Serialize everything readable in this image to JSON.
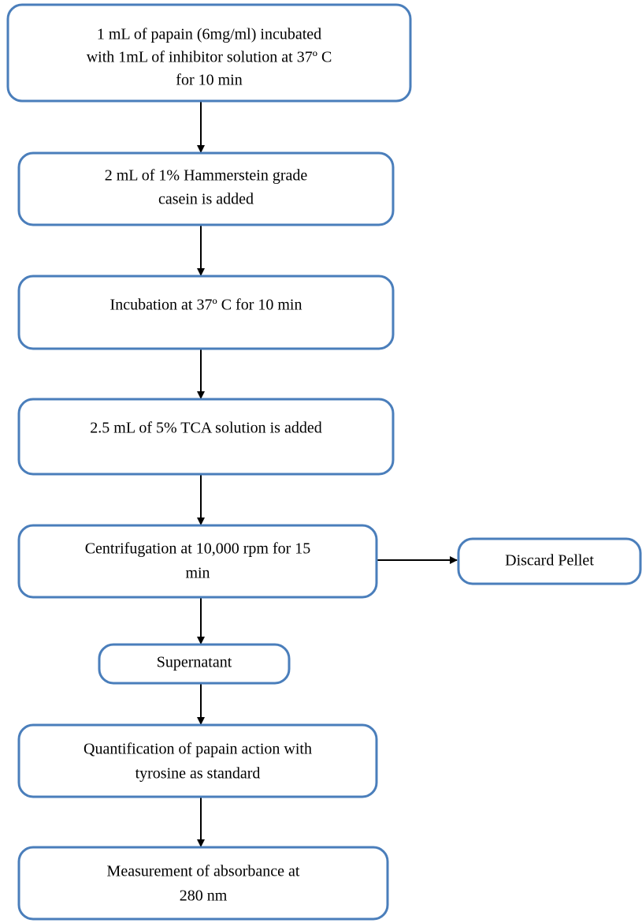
{
  "nodes": [
    {
      "lines": [
        "1 mL of papain (6mg/ml) incubated",
        "with 1mL of inhibitor solution at 37º C",
        "for 10 min"
      ]
    },
    {
      "lines": [
        "2 mL of 1% Hammerstein grade",
        "casein is added"
      ]
    },
    {
      "lines": [
        "Incubation at 37º C for 10 min"
      ]
    },
    {
      "lines": [
        "2.5 mL of 5% TCA solution is added"
      ]
    },
    {
      "lines": [
        "Centrifugation at 10,000 rpm for 15",
        "min"
      ]
    },
    {
      "lines": [
        "Discard Pellet"
      ]
    },
    {
      "lines": [
        "Supernatant"
      ]
    },
    {
      "lines": [
        "Quantification of papain action with",
        "tyrosine as standard"
      ]
    },
    {
      "lines": [
        "Measurement of absorbance at",
        "280 nm"
      ]
    }
  ]
}
